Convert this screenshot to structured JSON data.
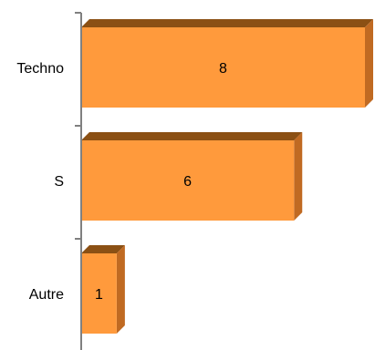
{
  "chart_data": {
    "type": "bar",
    "orientation": "horizontal",
    "three_d": true,
    "categories": [
      "Techno",
      "S",
      "Autre"
    ],
    "values": [
      8,
      6,
      1
    ],
    "data_labels": [
      "8",
      "6",
      "1"
    ],
    "xlim": [
      0,
      8
    ],
    "title": "",
    "xlabel": "",
    "ylabel": "",
    "grid": false,
    "legend": "none",
    "colors": {
      "bar_front": "#FF9A3C",
      "bar_top": "#8B5014",
      "bar_side": "#C06A22",
      "axis": "#808080"
    }
  }
}
